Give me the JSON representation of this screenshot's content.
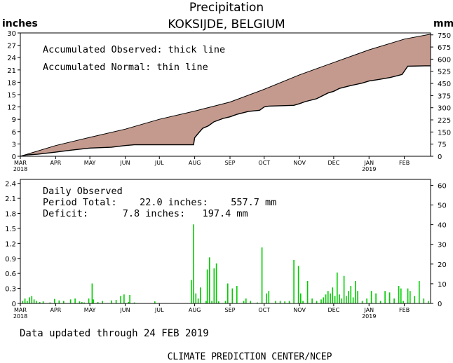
{
  "header": {
    "title": "Precipitation",
    "location": "KOKSIJDE, BELGIUM",
    "left_unit": "inches",
    "right_unit": "mm"
  },
  "accum_notes": {
    "line1": "Accumulated Observed: thick line",
    "line2": "Accumulated Normal: thin line"
  },
  "daily_notes": {
    "heading": "Daily Observed",
    "period_total": "Period Total:    22.0 inches:    557.7 mm",
    "deficit": "Deficit:      7.8 inches:   197.4 mm"
  },
  "footer": {
    "updated": "Data updated through 24 FEB 2019",
    "credit": "CLIMATE PREDICTION CENTER/NCEP"
  },
  "colors": {
    "fill": "#c49a8e",
    "daily_bar": "#00cc00",
    "axis": "#000000"
  },
  "chart_data": [
    {
      "type": "area",
      "x_start": "2018-03-01",
      "x_end": "2019-02-24",
      "month_ticks": [
        {
          "label": "MAR",
          "year": "2018",
          "day": 0
        },
        {
          "label": "APR",
          "year": "",
          "day": 31
        },
        {
          "label": "MAY",
          "year": "",
          "day": 61
        },
        {
          "label": "JUN",
          "year": "",
          "day": 92
        },
        {
          "label": "JUL",
          "year": "",
          "day": 122
        },
        {
          "label": "AUG",
          "year": "",
          "day": 153
        },
        {
          "label": "SEP",
          "year": "",
          "day": 184
        },
        {
          "label": "OCT",
          "year": "",
          "day": 214
        },
        {
          "label": "NOV",
          "year": "",
          "day": 245
        },
        {
          "label": "DEC",
          "year": "",
          "day": 275
        },
        {
          "label": "JAN",
          "year": "2019",
          "day": 306
        },
        {
          "label": "FEB",
          "year": "",
          "day": 337
        }
      ],
      "ylim_inches": [
        0,
        30
      ],
      "yticks_inches": [
        0,
        3,
        6,
        9,
        12,
        15,
        18,
        21,
        24,
        27,
        30
      ],
      "ylim_mm": [
        0,
        762
      ],
      "yticks_mm": [
        0,
        75,
        150,
        225,
        300,
        375,
        450,
        525,
        600,
        675,
        750
      ],
      "series": [
        {
          "name": "Accumulated Normal",
          "x_day": [
            0,
            31,
            61,
            92,
            122,
            153,
            184,
            214,
            245,
            275,
            306,
            337,
            360
          ],
          "values": [
            0.0,
            2.6,
            4.6,
            6.6,
            9.0,
            11.0,
            13.2,
            16.3,
            19.8,
            22.8,
            25.9,
            28.5,
            29.7
          ]
        },
        {
          "name": "Accumulated Observed",
          "x_day": [
            0,
            5,
            15,
            31,
            45,
            61,
            80,
            92,
            100,
            152,
            153,
            155,
            160,
            165,
            170,
            178,
            184,
            190,
            200,
            210,
            214,
            218,
            240,
            245,
            250,
            260,
            270,
            275,
            280,
            290,
            300,
            306,
            315,
            325,
            335,
            340,
            355,
            360
          ],
          "values": [
            0.0,
            0.3,
            0.5,
            1.0,
            1.5,
            2.0,
            2.2,
            2.6,
            2.8,
            2.8,
            4.5,
            5.2,
            6.8,
            7.4,
            8.4,
            9.2,
            9.6,
            10.2,
            10.9,
            11.2,
            12.0,
            12.2,
            12.4,
            12.8,
            13.3,
            14.0,
            15.4,
            15.8,
            16.5,
            17.2,
            17.8,
            18.3,
            18.7,
            19.2,
            19.9,
            21.9,
            22.0,
            22.0
          ]
        }
      ]
    },
    {
      "type": "bar",
      "title": "Daily Observed",
      "ylim_inches": [
        0,
        2.48
      ],
      "yticks_inches": [
        0,
        0.3,
        0.6,
        0.9,
        1.2,
        1.5,
        1.8,
        2.1,
        2.4
      ],
      "ytick_labels_inches": [
        "0",
        "0.3",
        "0.6",
        "0.9",
        "1.2",
        "1.5",
        "1.8",
        "2.1",
        "2.4"
      ],
      "ylim_mm": [
        0,
        63
      ],
      "yticks_mm": [
        0,
        10,
        20,
        30,
        40,
        50,
        60
      ],
      "x_day": [
        2,
        4,
        6,
        8,
        10,
        12,
        14,
        17,
        20,
        26,
        30,
        34,
        38,
        44,
        48,
        52,
        54,
        56,
        60,
        63,
        64,
        68,
        72,
        80,
        84,
        88,
        91,
        95,
        96,
        100,
        118,
        150,
        152,
        154,
        156,
        158,
        163,
        164,
        166,
        168,
        170,
        172,
        174,
        180,
        182,
        186,
        190,
        196,
        198,
        202,
        208,
        212,
        216,
        218,
        224,
        228,
        232,
        236,
        240,
        244,
        246,
        248,
        252,
        256,
        260,
        264,
        266,
        268,
        270,
        272,
        274,
        276,
        278,
        280,
        282,
        284,
        286,
        288,
        290,
        292,
        294,
        296,
        300,
        304,
        308,
        312,
        316,
        320,
        324,
        328,
        332,
        334,
        336,
        340,
        342,
        346,
        350,
        354,
        358
      ],
      "values": [
        0.05,
        0.1,
        0.05,
        0.12,
        0.15,
        0.08,
        0.05,
        0.03,
        0.04,
        0.02,
        0.09,
        0.06,
        0.05,
        0.08,
        0.1,
        0.04,
        0.03,
        0.02,
        0.1,
        0.4,
        0.08,
        0.03,
        0.05,
        0.06,
        0.07,
        0.15,
        0.18,
        0.03,
        0.17,
        0.02,
        0.04,
        0.47,
        1.58,
        0.2,
        0.1,
        0.32,
        0.05,
        0.68,
        0.92,
        0.05,
        0.7,
        0.8,
        0.04,
        0.05,
        0.4,
        0.3,
        0.35,
        0.05,
        0.1,
        0.05,
        0.02,
        1.12,
        0.2,
        0.25,
        0.05,
        0.05,
        0.04,
        0.05,
        0.87,
        0.75,
        0.2,
        0.05,
        0.45,
        0.1,
        0.05,
        0.08,
        0.12,
        0.18,
        0.25,
        0.2,
        0.32,
        0.15,
        0.62,
        0.18,
        0.1,
        0.55,
        0.15,
        0.25,
        0.35,
        0.12,
        0.45,
        0.25,
        0.05,
        0.1,
        0.25,
        0.2,
        0.05,
        0.25,
        0.22,
        0.1,
        0.35,
        0.3,
        0.05,
        0.3,
        0.25,
        0.15,
        0.45,
        0.1,
        0.05
      ]
    }
  ]
}
